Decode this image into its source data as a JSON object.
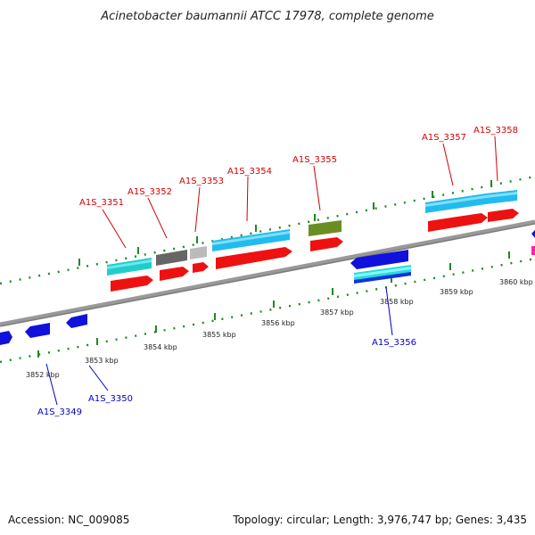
{
  "title": "Acinetobacter baumannii ATCC 17978, complete genome",
  "footer": {
    "accession": "Accession: NC_009085",
    "summary": "Topology: circular; Length: 3,976,747 bp; Genes: 3,435"
  },
  "ruler": {
    "unit_label": "kbp",
    "labels": [
      "3852 kbp",
      "3853 kbp",
      "3854 kbp",
      "3855 kbp",
      "3856 kbp",
      "3857 kbp",
      "3858 kbp",
      "3859 kbp",
      "3860 kbp"
    ]
  },
  "genes_top": [
    "A1S_3351",
    "A1S_3352",
    "A1S_3353",
    "A1S_3354",
    "A1S_3355",
    "A1S_3357",
    "A1S_3358"
  ],
  "genes_bottom": [
    "A1S_3349",
    "A1S_3350",
    "A1S_3356"
  ],
  "colors": {
    "cds": "#ee1111",
    "gene_cyan": "#22cccc",
    "gene_dark": "#666666",
    "gene_light": "#bbbbbb",
    "gene_sky": "#22bbee",
    "gene_olive": "#6b8e23",
    "gene_blue": "#1111dd",
    "label_top": "#d40000",
    "label_bottom": "#0000cc",
    "ruler_ticks": "#228822",
    "backbone": "#888888"
  }
}
